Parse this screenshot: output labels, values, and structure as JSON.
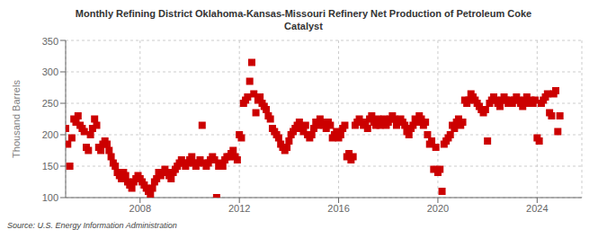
{
  "chart_data": {
    "type": "scatter",
    "title": "Monthly Refining District Oklahoma-Kansas-Missouri Refinery Net Production of Petroleum Coke\nCatalyst",
    "ylabel": "Thousand Barrels",
    "annotation": "Source: U.S. Energy Information Administration",
    "color": "#cc0000",
    "marker": "square",
    "grid": true,
    "xlim": [
      2005.0,
      2025.8
    ],
    "xticks": [
      2008,
      2012,
      2016,
      2020,
      2024
    ],
    "ylim": [
      100,
      350
    ],
    "yticks": [
      100,
      150,
      200,
      250,
      300,
      350
    ],
    "x": [
      2005.0,
      2005.083,
      2005.167,
      2005.25,
      2005.333,
      2005.417,
      2005.5,
      2005.583,
      2005.667,
      2005.75,
      2005.833,
      2005.917,
      2006.0,
      2006.083,
      2006.167,
      2006.25,
      2006.333,
      2006.417,
      2006.5,
      2006.583,
      2006.667,
      2006.75,
      2006.833,
      2006.917,
      2007.0,
      2007.083,
      2007.167,
      2007.25,
      2007.333,
      2007.417,
      2007.5,
      2007.583,
      2007.667,
      2007.75,
      2007.833,
      2007.917,
      2008.0,
      2008.083,
      2008.167,
      2008.25,
      2008.333,
      2008.417,
      2008.5,
      2008.583,
      2008.667,
      2008.75,
      2008.833,
      2008.917,
      2009.0,
      2009.083,
      2009.167,
      2009.25,
      2009.333,
      2009.417,
      2009.5,
      2009.583,
      2009.667,
      2009.75,
      2009.833,
      2009.917,
      2010.0,
      2010.083,
      2010.167,
      2010.25,
      2010.333,
      2010.417,
      2010.5,
      2010.583,
      2010.667,
      2010.75,
      2010.833,
      2010.917,
      2011.0,
      2011.083,
      2011.167,
      2011.25,
      2011.333,
      2011.417,
      2011.5,
      2011.583,
      2011.667,
      2011.75,
      2011.833,
      2011.917,
      2012.0,
      2012.083,
      2012.167,
      2012.25,
      2012.333,
      2012.417,
      2012.5,
      2012.583,
      2012.667,
      2012.75,
      2012.833,
      2012.917,
      2013.0,
      2013.083,
      2013.167,
      2013.25,
      2013.333,
      2013.417,
      2013.5,
      2013.583,
      2013.667,
      2013.75,
      2013.833,
      2013.917,
      2014.0,
      2014.083,
      2014.167,
      2014.25,
      2014.333,
      2014.417,
      2014.5,
      2014.583,
      2014.667,
      2014.75,
      2014.833,
      2014.917,
      2015.0,
      2015.083,
      2015.167,
      2015.25,
      2015.333,
      2015.417,
      2015.5,
      2015.583,
      2015.667,
      2015.75,
      2015.833,
      2015.917,
      2016.0,
      2016.083,
      2016.167,
      2016.25,
      2016.333,
      2016.417,
      2016.5,
      2016.583,
      2016.667,
      2016.75,
      2016.833,
      2016.917,
      2017.0,
      2017.083,
      2017.167,
      2017.25,
      2017.333,
      2017.417,
      2017.5,
      2017.583,
      2017.667,
      2017.75,
      2017.833,
      2017.917,
      2018.0,
      2018.083,
      2018.167,
      2018.25,
      2018.333,
      2018.417,
      2018.5,
      2018.583,
      2018.667,
      2018.75,
      2018.833,
      2018.917,
      2019.0,
      2019.083,
      2019.167,
      2019.25,
      2019.333,
      2019.417,
      2019.5,
      2019.583,
      2019.667,
      2019.75,
      2019.833,
      2019.917,
      2020.0,
      2020.083,
      2020.167,
      2020.25,
      2020.333,
      2020.417,
      2020.5,
      2020.583,
      2020.667,
      2020.75,
      2020.833,
      2020.917,
      2021.0,
      2021.083,
      2021.167,
      2021.25,
      2021.333,
      2021.417,
      2021.5,
      2021.583,
      2021.667,
      2021.75,
      2021.833,
      2021.917,
      2022.0,
      2022.083,
      2022.167,
      2022.25,
      2022.333,
      2022.417,
      2022.5,
      2022.583,
      2022.667,
      2022.75,
      2022.833,
      2022.917,
      2023.0,
      2023.083,
      2023.167,
      2023.25,
      2023.333,
      2023.417,
      2023.5,
      2023.583,
      2023.667,
      2023.75,
      2023.833,
      2023.917,
      2024.0,
      2024.083,
      2024.167,
      2024.25,
      2024.333,
      2024.417,
      2024.5,
      2024.583,
      2024.667,
      2024.75,
      2024.833,
      2024.917
    ],
    "values": [
      210,
      185,
      150,
      195,
      225,
      220,
      230,
      215,
      210,
      205,
      180,
      175,
      200,
      210,
      225,
      215,
      180,
      175,
      185,
      190,
      185,
      175,
      165,
      155,
      150,
      140,
      135,
      130,
      140,
      135,
      125,
      120,
      115,
      125,
      130,
      135,
      130,
      125,
      120,
      115,
      110,
      105,
      115,
      125,
      130,
      140,
      135,
      140,
      145,
      140,
      135,
      130,
      140,
      145,
      150,
      155,
      160,
      155,
      150,
      155,
      160,
      165,
      155,
      150,
      155,
      160,
      215,
      155,
      150,
      155,
      160,
      165,
      160,
      100,
      150,
      155,
      150,
      160,
      165,
      165,
      170,
      175,
      165,
      160,
      200,
      195,
      250,
      255,
      260,
      285,
      315,
      265,
      235,
      255,
      260,
      250,
      245,
      240,
      230,
      225,
      210,
      205,
      200,
      195,
      185,
      180,
      175,
      180,
      190,
      200,
      205,
      210,
      215,
      220,
      210,
      205,
      215,
      200,
      195,
      200,
      210,
      220,
      215,
      225,
      220,
      215,
      210,
      220,
      215,
      195,
      200,
      205,
      195,
      200,
      210,
      215,
      165,
      170,
      160,
      165,
      215,
      220,
      225,
      220,
      215,
      220,
      210,
      225,
      230,
      220,
      215,
      225,
      215,
      220,
      225,
      215,
      220,
      225,
      230,
      225,
      215,
      220,
      225,
      220,
      215,
      205,
      200,
      210,
      215,
      225,
      220,
      230,
      225,
      215,
      220,
      200,
      185,
      190,
      145,
      180,
      140,
      145,
      110,
      185,
      190,
      195,
      200,
      215,
      210,
      220,
      225,
      215,
      220,
      255,
      250,
      255,
      265,
      260,
      255,
      250,
      245,
      240,
      235,
      240,
      190,
      250,
      255,
      260,
      255,
      250,
      245,
      255,
      260,
      255,
      250,
      255,
      250,
      255,
      260,
      255,
      250,
      245,
      255,
      260,
      250,
      255,
      250,
      255,
      195,
      190,
      250,
      255,
      260,
      265,
      235,
      230,
      265,
      270,
      205,
      230
    ]
  }
}
